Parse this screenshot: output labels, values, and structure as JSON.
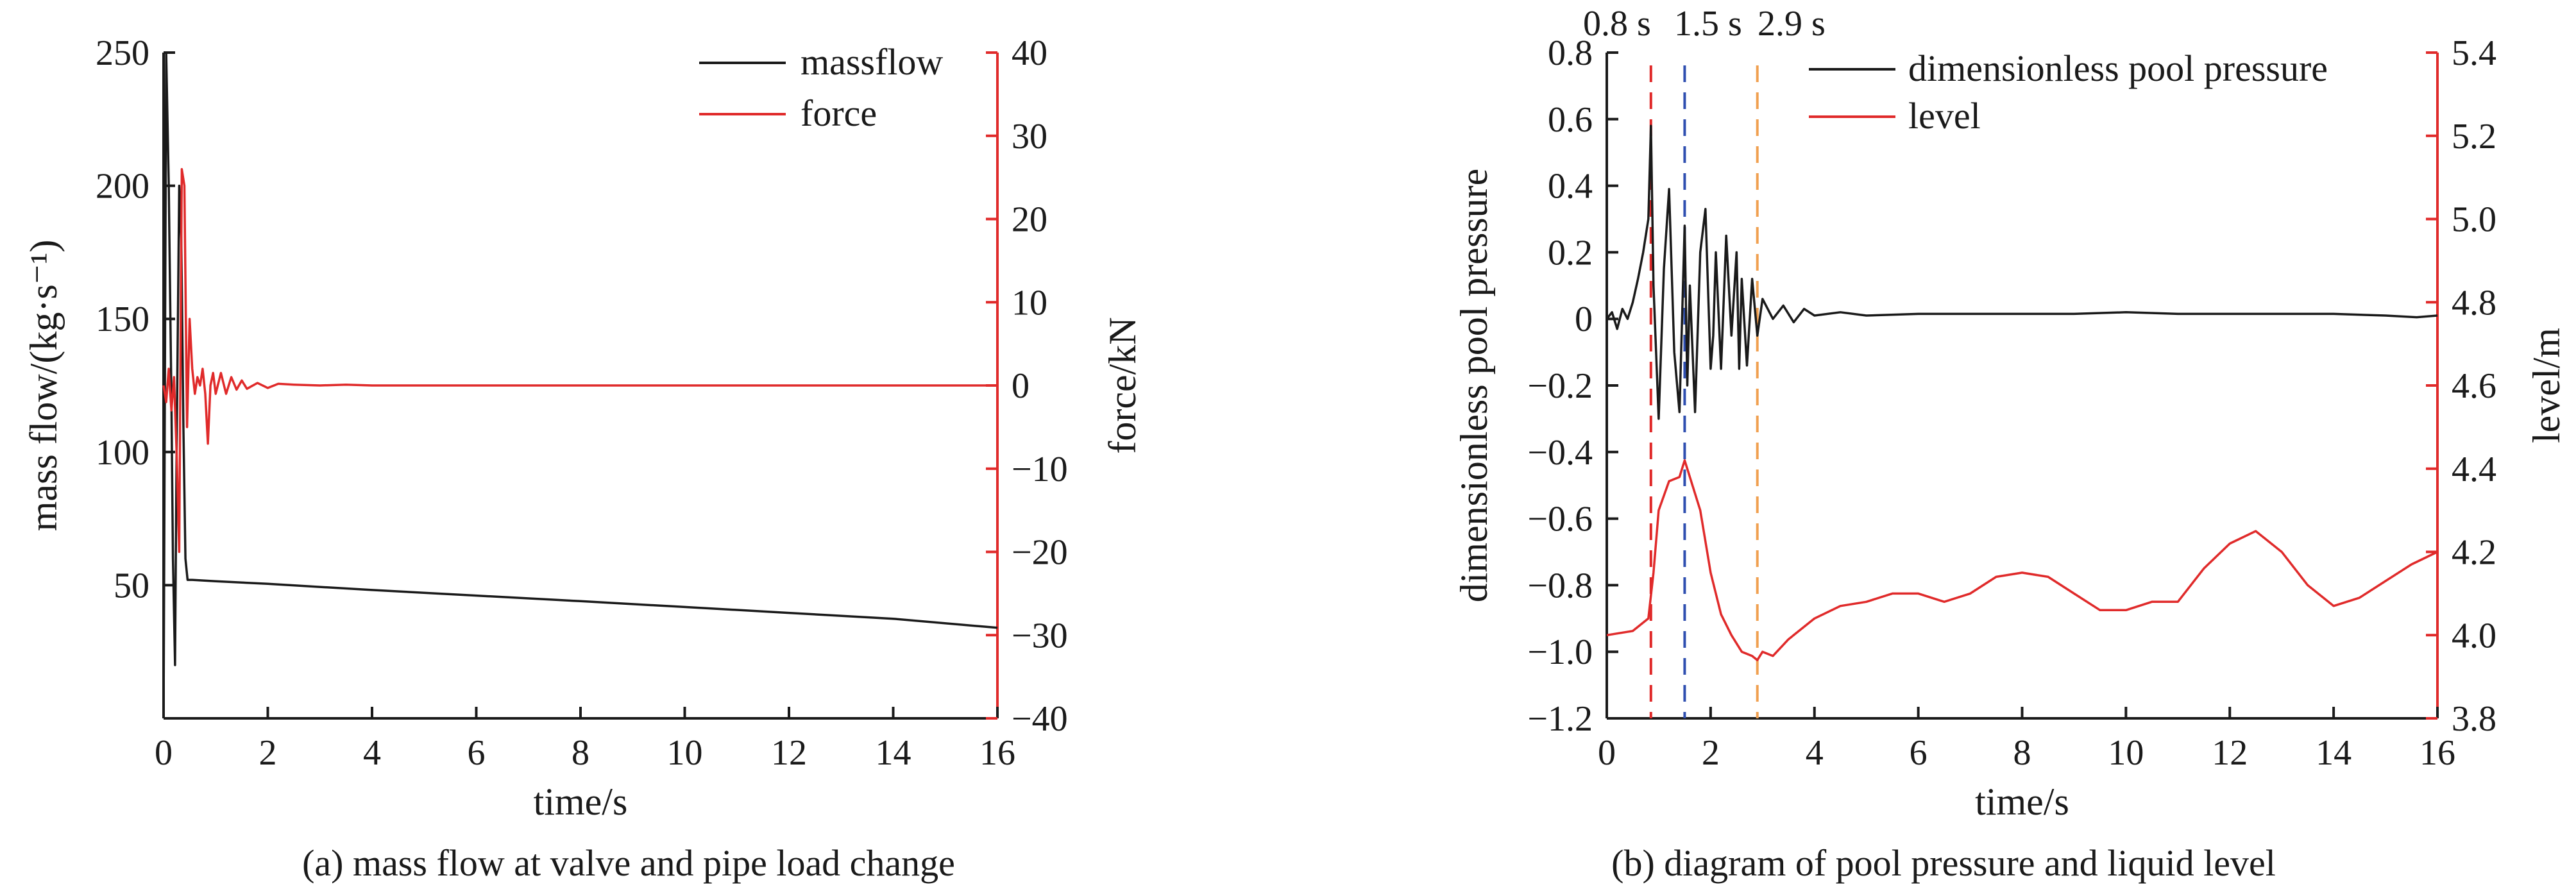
{
  "colors": {
    "black": "#1a1a1a",
    "red": "#e02a2a",
    "blue": "#2f4fb0",
    "orange": "#f0a050"
  },
  "chart_data": [
    {
      "type": "line",
      "caption": "(a) mass flow at valve and pipe load change",
      "xlabel": "time/s",
      "ylabel_left": "mass  flow/(kg·s⁻¹)",
      "ylabel_right": "force/kN",
      "xlim": [
        0,
        16
      ],
      "ylim_left": [
        0,
        250
      ],
      "ylim_right": [
        -40,
        40
      ],
      "x_ticks": [
        "0",
        "2",
        "4",
        "6",
        "8",
        "10",
        "12",
        "14",
        "16"
      ],
      "y_left_ticks": [
        "50",
        "100",
        "150",
        "200",
        "250"
      ],
      "y_right_ticks": [
        "40",
        "30",
        "20",
        "10",
        "0",
        "−10",
        "−20",
        "−30",
        "−40"
      ],
      "legend_position": "top-right",
      "series": [
        {
          "name": "massflow",
          "axis": "left",
          "color": "black",
          "x": [
            0.0,
            0.05,
            0.1,
            0.15,
            0.18,
            0.22,
            0.25,
            0.3,
            0.34,
            0.38,
            0.42,
            0.46,
            0.5,
            0.55,
            1.0,
            2.0,
            4.0,
            6.0,
            8.0,
            10.0,
            12.0,
            14.0,
            16.0
          ],
          "y": [
            0,
            250,
            200,
            120,
            60,
            20,
            100,
            200,
            180,
            110,
            60,
            52,
            52,
            52,
            51.5,
            50.5,
            48.2,
            46.1,
            44.0,
            41.8,
            39.6,
            37.4,
            34
          ]
        },
        {
          "name": "force",
          "axis": "right",
          "color": "red",
          "x": [
            0.0,
            0.05,
            0.1,
            0.15,
            0.2,
            0.25,
            0.3,
            0.35,
            0.4,
            0.45,
            0.5,
            0.55,
            0.6,
            0.65,
            0.7,
            0.75,
            0.8,
            0.85,
            0.9,
            0.95,
            1.0,
            1.1,
            1.2,
            1.3,
            1.4,
            1.5,
            1.6,
            1.8,
            2.0,
            2.2,
            2.5,
            3.0,
            3.5,
            4.0,
            6.0,
            8.0,
            10.0,
            12.0,
            14.0,
            16.0
          ],
          "y": [
            0,
            -2,
            2,
            -3,
            1,
            -8,
            -20,
            26,
            24,
            -5,
            8,
            2,
            -1,
            1,
            0,
            2,
            -1,
            -7,
            0,
            1.5,
            -1,
            1.5,
            -1,
            1,
            -0.5,
            0.6,
            -0.4,
            0.3,
            -0.3,
            0.2,
            0.1,
            0,
            0.1,
            0,
            0,
            0,
            0,
            0,
            0,
            0
          ]
        }
      ]
    },
    {
      "type": "line",
      "caption": "(b) diagram of pool pressure and liquid level",
      "xlabel": "time/s",
      "ylabel_left": "dimensionless pool pressure",
      "ylabel_right": "level/m",
      "xlim": [
        0,
        16
      ],
      "ylim_left": [
        -1.2,
        0.8
      ],
      "ylim_right": [
        3.8,
        5.4
      ],
      "x_ticks": [
        "0",
        "2",
        "4",
        "6",
        "8",
        "10",
        "12",
        "14",
        "16"
      ],
      "y_left_ticks": [
        "0.8",
        "0.6",
        "0.4",
        "0.2",
        "0",
        "−0.2",
        "−0.4",
        "−0.6",
        "−0.8",
        "−1.0",
        "−1.2"
      ],
      "y_right_ticks": [
        "5.4",
        "5.2",
        "5.0",
        "4.8",
        "4.6",
        "4.4",
        "4.2",
        "4.0",
        "3.8"
      ],
      "legend_position": "top-right",
      "markers": [
        {
          "label": "0.8 s",
          "x": 0.85,
          "color": "red"
        },
        {
          "label": "1.5 s",
          "x": 1.5,
          "color": "blue"
        },
        {
          "label": "2.9 s",
          "x": 2.9,
          "color": "orange"
        }
      ],
      "series": [
        {
          "name": "dimensionless pool pressure",
          "axis": "left",
          "color": "black",
          "x": [
            0.0,
            0.1,
            0.2,
            0.3,
            0.4,
            0.5,
            0.6,
            0.7,
            0.8,
            0.85,
            0.9,
            1.0,
            1.1,
            1.2,
            1.3,
            1.4,
            1.5,
            1.55,
            1.6,
            1.7,
            1.8,
            1.9,
            2.0,
            2.05,
            2.1,
            2.2,
            2.3,
            2.4,
            2.5,
            2.55,
            2.6,
            2.7,
            2.8,
            2.9,
            3.0,
            3.2,
            3.4,
            3.6,
            3.8,
            4.0,
            4.5,
            5.0,
            6.0,
            7.0,
            8.0,
            9.0,
            10.0,
            11.0,
            12.0,
            13.0,
            14.0,
            15.0,
            15.6,
            16.0
          ],
          "y": [
            0.0,
            0.02,
            -0.03,
            0.03,
            0.0,
            0.05,
            0.12,
            0.2,
            0.3,
            0.58,
            0.1,
            -0.3,
            0.15,
            0.39,
            -0.1,
            -0.28,
            0.28,
            -0.2,
            0.1,
            -0.28,
            0.2,
            0.33,
            -0.15,
            -0.05,
            0.2,
            -0.15,
            0.25,
            -0.05,
            0.2,
            -0.15,
            0.12,
            -0.14,
            0.12,
            -0.05,
            0.06,
            0.0,
            0.04,
            -0.01,
            0.03,
            0.01,
            0.02,
            0.01,
            0.015,
            0.015,
            0.015,
            0.015,
            0.02,
            0.015,
            0.015,
            0.015,
            0.015,
            0.01,
            0.005,
            0.01
          ]
        },
        {
          "name": "level",
          "axis": "right",
          "color": "red",
          "x": [
            0.0,
            0.5,
            0.8,
            0.9,
            1.0,
            1.2,
            1.4,
            1.5,
            1.6,
            1.8,
            2.0,
            2.2,
            2.4,
            2.6,
            2.8,
            2.9,
            3.0,
            3.2,
            3.5,
            4.0,
            4.5,
            5.0,
            5.5,
            6.0,
            6.5,
            7.0,
            7.5,
            8.0,
            8.5,
            9.0,
            9.5,
            10.0,
            10.5,
            11.0,
            11.5,
            12.0,
            12.5,
            13.0,
            13.5,
            14.0,
            14.5,
            15.0,
            15.5,
            16.0
          ],
          "y": [
            4.0,
            4.01,
            4.04,
            4.15,
            4.3,
            4.37,
            4.38,
            4.42,
            4.38,
            4.3,
            4.15,
            4.05,
            4.0,
            3.96,
            3.95,
            3.94,
            3.96,
            3.95,
            3.99,
            4.04,
            4.07,
            4.08,
            4.1,
            4.1,
            4.08,
            4.1,
            4.14,
            4.15,
            4.14,
            4.1,
            4.06,
            4.06,
            4.08,
            4.08,
            4.16,
            4.22,
            4.25,
            4.2,
            4.12,
            4.07,
            4.09,
            4.13,
            4.17,
            4.2
          ]
        }
      ]
    }
  ]
}
